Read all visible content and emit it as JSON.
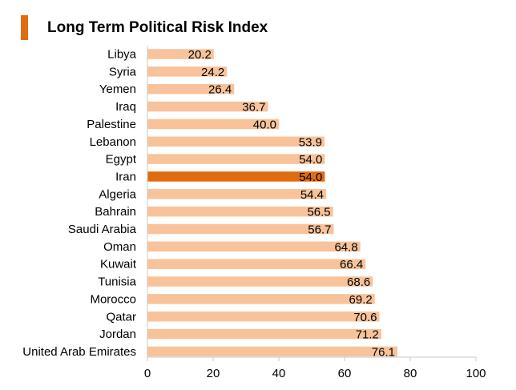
{
  "chart_data": {
    "type": "bar",
    "orientation": "horizontal",
    "title": "Long Term Political Risk Index",
    "categories": [
      "Libya",
      "Syria",
      "Yemen",
      "Iraq",
      "Palestine",
      "Lebanon",
      "Egypt",
      "Iran",
      "Algeria",
      "Bahrain",
      "Saudi Arabia",
      "Oman",
      "Kuwait",
      "Tunisia",
      "Morocco",
      "Qatar",
      "Jordan",
      "United Arab Emirates"
    ],
    "values": [
      20.2,
      24.2,
      26.4,
      36.7,
      40.0,
      53.9,
      54.0,
      54.0,
      54.4,
      56.5,
      56.7,
      64.8,
      66.4,
      68.6,
      69.2,
      70.6,
      71.2,
      76.1
    ],
    "value_labels": [
      "20.2",
      "24.2",
      "26.4",
      "36.7",
      "40.0",
      "53.9",
      "54.0",
      "54.0",
      "54.4",
      "56.5",
      "56.7",
      "64.8",
      "66.4",
      "68.6",
      "69.2",
      "70.6",
      "71.2",
      "76.1"
    ],
    "highlight": "Iran",
    "xlim": [
      0,
      100
    ],
    "xticks": [
      0,
      20,
      40,
      60,
      80,
      100
    ],
    "xlabel": "",
    "ylabel": "",
    "grid": false,
    "legend": "none"
  },
  "colors": {
    "bar": "#F8C39A",
    "highlight": "#E06C10",
    "accent": "#E06C10",
    "axis": "#C8C8C8",
    "text": "#000000"
  }
}
